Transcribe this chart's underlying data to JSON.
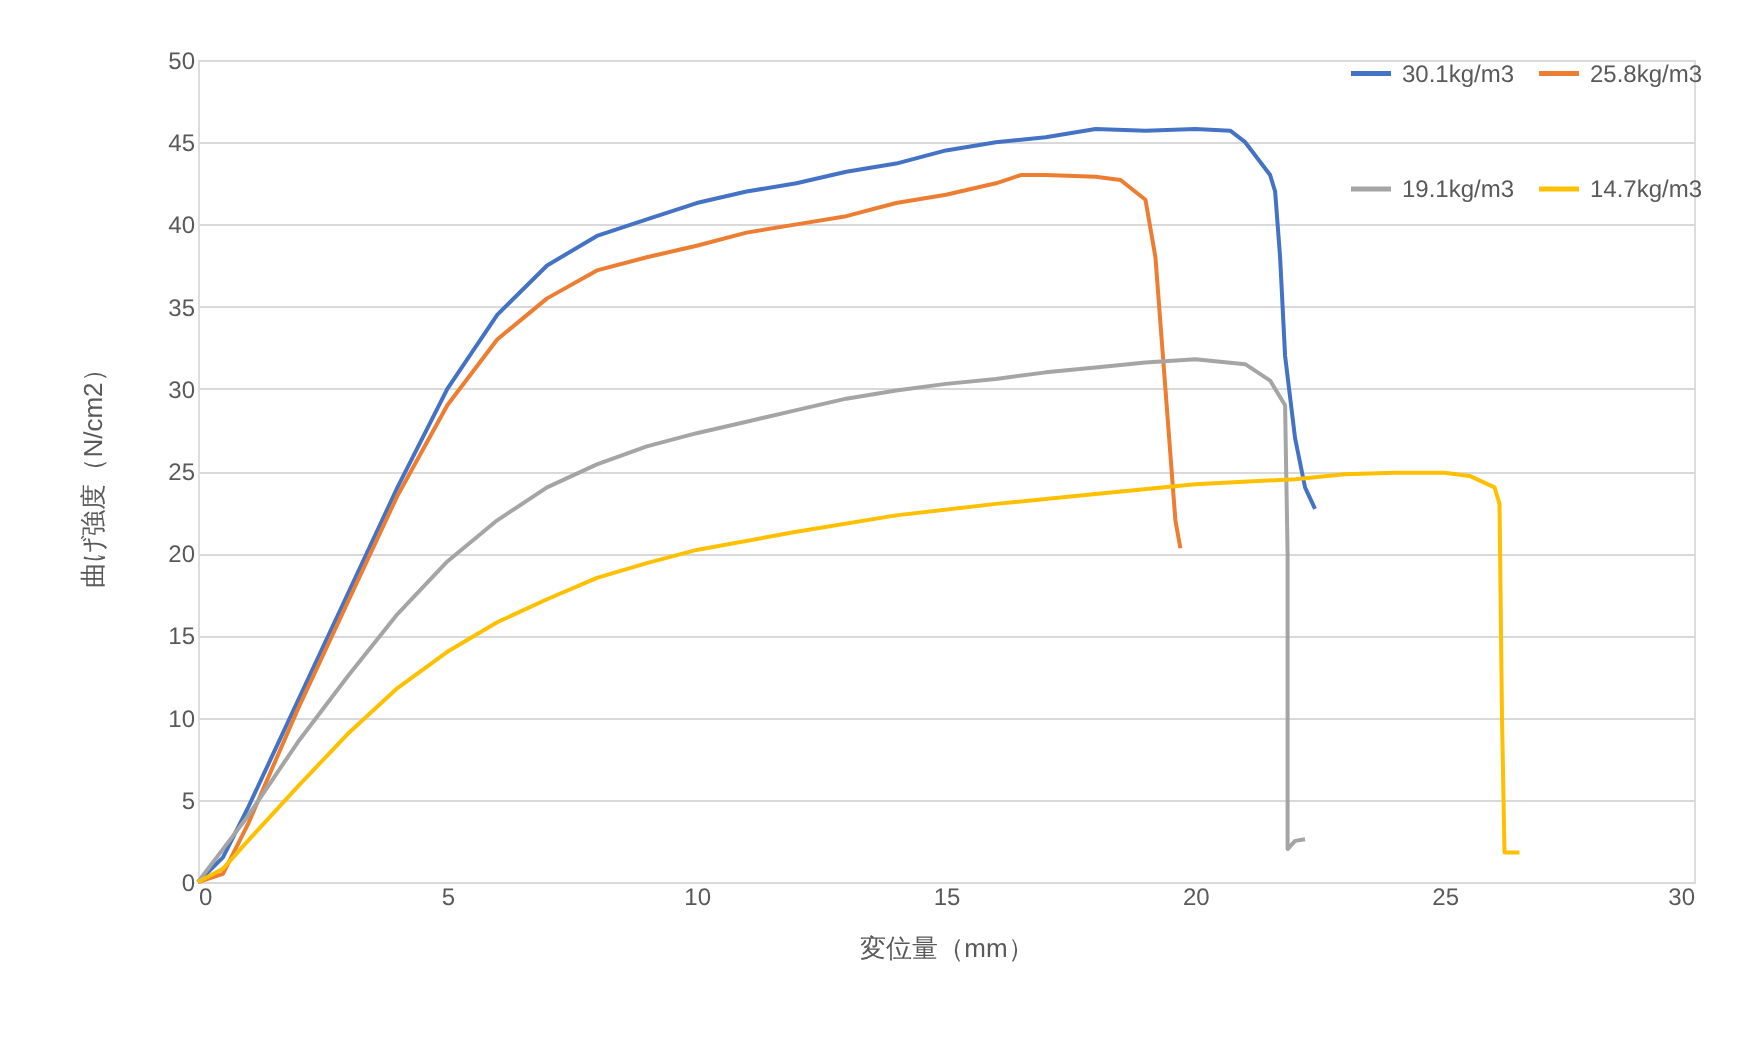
{
  "chart_data": {
    "type": "line",
    "xlabel": "変位量（mm）",
    "ylabel": "曲げ強度（N/cm2）",
    "xlim": [
      0,
      30
    ],
    "xticks": [
      0,
      5,
      10,
      15,
      20,
      25,
      30
    ],
    "ylim": [
      0,
      50
    ],
    "yticks": [
      0,
      5,
      10,
      15,
      20,
      25,
      30,
      35,
      40,
      45,
      50
    ],
    "grid": "y",
    "legend": "top right",
    "marker": "none",
    "line_style": "solid",
    "series": [
      {
        "name": "30.1kg/m3",
        "color": "#4472c4",
        "x": [
          0,
          0.5,
          1,
          2,
          3,
          4,
          5,
          6,
          7,
          8,
          9,
          10,
          11,
          12,
          13,
          14,
          15,
          16,
          17,
          18,
          19,
          20,
          20.7,
          21,
          21.5,
          21.6,
          21.7,
          21.8,
          22,
          22.2,
          22.4
        ],
        "values": [
          0,
          1.5,
          4.5,
          11,
          17.5,
          24,
          30,
          34.5,
          37.5,
          39.3,
          40.3,
          41.3,
          42,
          42.5,
          43.2,
          43.7,
          44.5,
          45,
          45.3,
          45.8,
          45.7,
          45.8,
          45.7,
          45,
          43,
          42,
          38,
          32,
          27,
          24,
          22.7
        ]
      },
      {
        "name": "25.8kg/m3",
        "color": "#ed7d31",
        "x": [
          0,
          0.5,
          1,
          2,
          3,
          4,
          5,
          6,
          7,
          8,
          9,
          10,
          11,
          12,
          13,
          14,
          15,
          16,
          16.5,
          17,
          18,
          18.5,
          19,
          19.2,
          19.4,
          19.6,
          19.7
        ],
        "values": [
          0,
          0.5,
          3.5,
          10.5,
          17,
          23.5,
          29,
          33,
          35.5,
          37.2,
          38,
          38.7,
          39.5,
          40,
          40.5,
          41.3,
          41.8,
          42.5,
          43,
          43,
          42.9,
          42.7,
          41.5,
          38,
          30,
          22,
          20.3
        ]
      },
      {
        "name": "19.1kg/m3",
        "color": "#a5a5a5",
        "x": [
          0,
          0.5,
          1,
          2,
          3,
          4,
          5,
          6,
          7,
          8,
          9,
          10,
          11,
          12,
          13,
          14,
          15,
          16,
          17,
          18,
          19,
          20,
          21,
          21.5,
          21.8,
          21.85,
          21.85,
          22,
          22.2
        ],
        "values": [
          0,
          2,
          4,
          8.5,
          12.5,
          16.3,
          19.5,
          22,
          24,
          25.4,
          26.5,
          27.3,
          28,
          28.7,
          29.4,
          29.9,
          30.3,
          30.6,
          31,
          31.3,
          31.6,
          31.8,
          31.5,
          30.5,
          29,
          20,
          2,
          2.5,
          2.6
        ]
      },
      {
        "name": "14.7kg/m3",
        "color": "#ffc000",
        "x": [
          0,
          0.5,
          1,
          2,
          3,
          4,
          5,
          6,
          7,
          8,
          9,
          10,
          12,
          14,
          16,
          18,
          20,
          22,
          23,
          24,
          25,
          25.5,
          26,
          26.1,
          26.15,
          26.2,
          26.5
        ],
        "values": [
          0,
          0.8,
          2.5,
          5.8,
          9,
          11.8,
          14,
          15.8,
          17.2,
          18.5,
          19.4,
          20.2,
          21.3,
          22.3,
          23,
          23.6,
          24.2,
          24.5,
          24.8,
          24.9,
          24.9,
          24.7,
          24,
          23,
          10,
          1.8,
          1.8
        ]
      }
    ]
  }
}
